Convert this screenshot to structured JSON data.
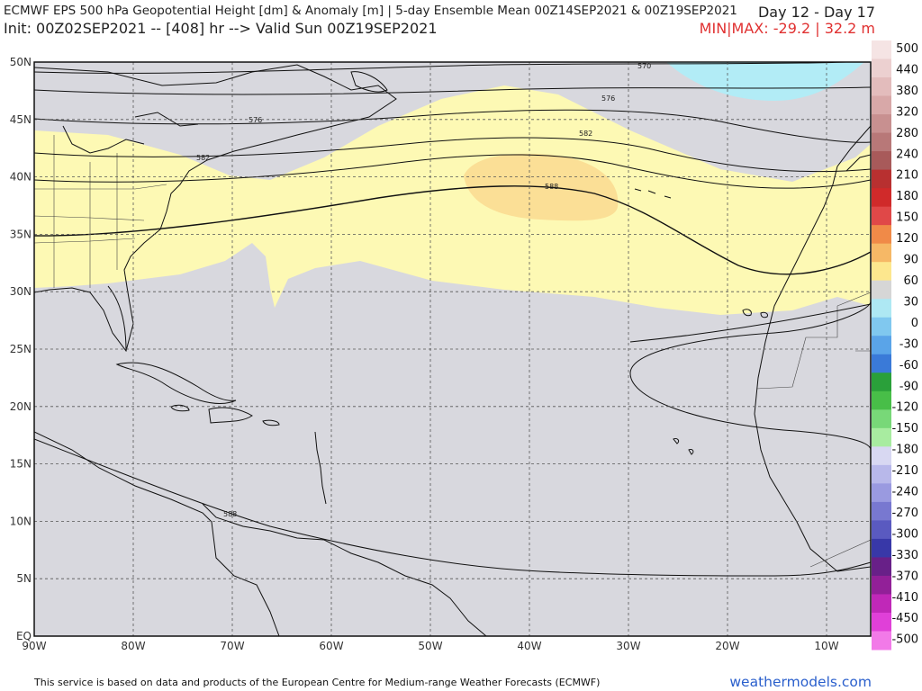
{
  "header": {
    "title": "ECMWF EPS 500 hPa Geopotential Height [dm] & Anomaly [m] | 5-day Ensemble Mean 00Z14SEP2021 & 00Z19SEP2021",
    "init": "Init: 00Z02SEP2021 -- [408] hr --> Valid Sun 00Z19SEP2021",
    "day_range": "Day 12 - Day 17",
    "minmax": "MIN|MAX: -29.2 | 32.2 m"
  },
  "map": {
    "lat_labels": [
      "50N",
      "45N",
      "40N",
      "35N",
      "30N",
      "25N",
      "20N",
      "15N",
      "10N",
      "5N",
      "EQ"
    ],
    "lon_labels": [
      "90W",
      "80W",
      "70W",
      "60W",
      "50W",
      "40W",
      "30W",
      "20W",
      "10W"
    ],
    "contour_labels": [
      "570",
      "576",
      "582",
      "588",
      "576",
      "582",
      "588"
    ],
    "colors": {
      "ocean_neutral": "#d8d8de",
      "anomaly_30": "#fdf9b4",
      "anomaly_60": "#fbdf96",
      "anomaly_neg": "#b2ecf6"
    }
  },
  "colorbar": {
    "labels": [
      "500",
      "440",
      "380",
      "320",
      "280",
      "240",
      "210",
      "180",
      "150",
      "120",
      "90",
      "60",
      "30",
      "0",
      "-30",
      "-60",
      "-90",
      "-120",
      "-150",
      "-180",
      "-210",
      "-240",
      "-270",
      "-300",
      "-330",
      "-370",
      "-410",
      "-450",
      "-500"
    ],
    "colors": [
      "#f5e4e4",
      "#ecd0d0",
      "#e3bcbc",
      "#d8a8a8",
      "#c89090",
      "#b87878",
      "#a85a5a",
      "#b83030",
      "#d02a2a",
      "#e04848",
      "#f08a48",
      "#f6b866",
      "#fde78e",
      "#d6d6d6",
      "#aee8f3",
      "#80c8ef",
      "#5aa4e8",
      "#3a7ad8",
      "#2aa03a",
      "#48be48",
      "#78d878",
      "#a8eca0",
      "#d8d8f2",
      "#b8b8ea",
      "#9a9ae0",
      "#7878d0",
      "#5a5ac0",
      "#3838a8",
      "#682088",
      "#922098",
      "#c028b8",
      "#e040d8",
      "#f27ae8"
    ]
  },
  "footer": {
    "credit": "This service is based on data and products of the European Centre for Medium-range Weather Forecasts (ECMWF)",
    "brand": "weathermodels.com"
  }
}
